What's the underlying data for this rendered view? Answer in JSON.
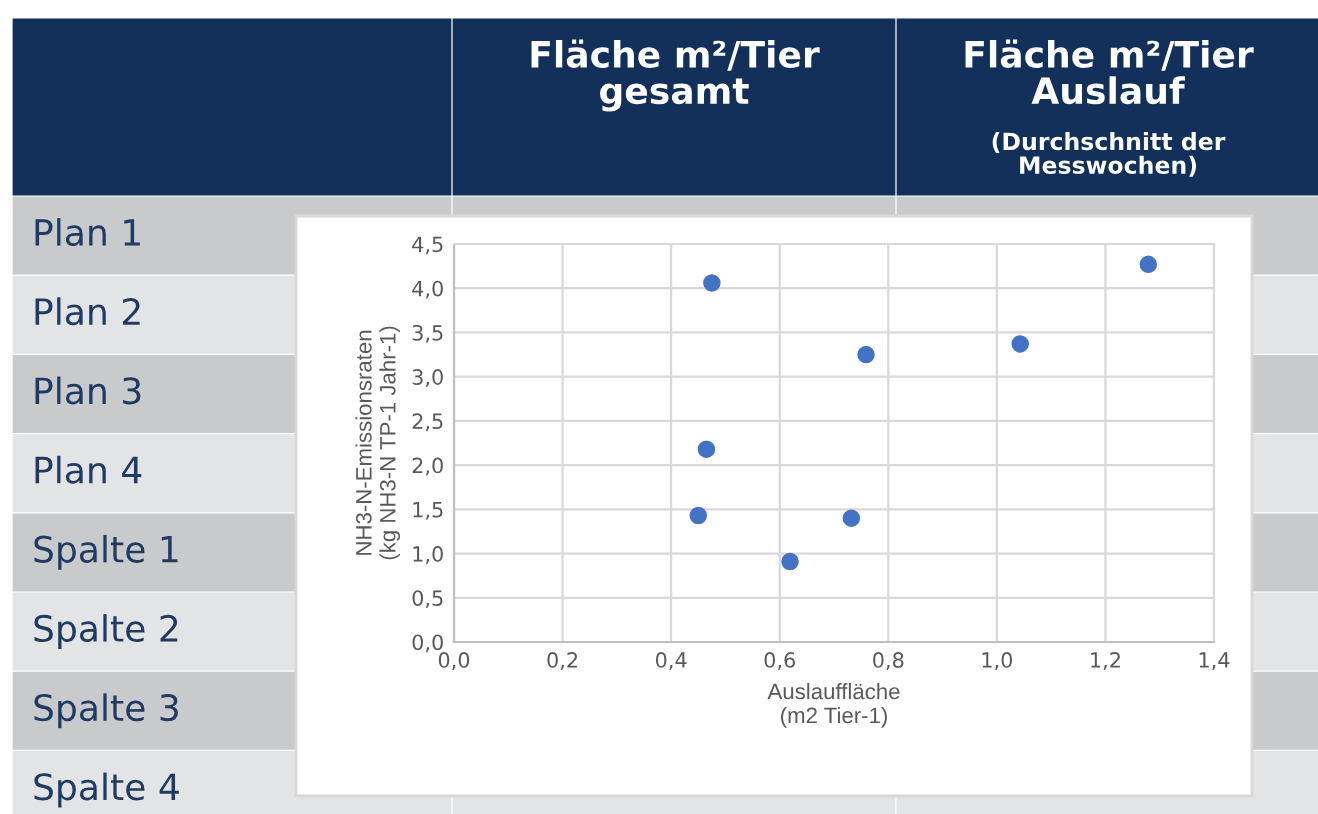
{
  "chart_data": {
    "type": "scatter",
    "xlabel": "Auslauffläche\n(m2 Tier-1)",
    "ylabel": "NH3-N-Emissionsraten\n(kg NH3-N TP-1 Jahr-1)",
    "x": [
      0.475,
      0.759,
      1.279,
      1.043,
      0.465,
      0.45,
      0.732,
      0.619
    ],
    "series": [
      {
        "color": "#4472c4",
        "values": [
          4.06,
          3.25,
          4.27,
          3.37,
          2.18,
          1.43,
          1.4,
          0.91
        ]
      }
    ],
    "marker": "circle",
    "xlim": [
      0,
      1.4
    ],
    "xticks": [
      {
        "value": 0,
        "label": "0,0"
      },
      {
        "value": 0.2,
        "label": "0,2"
      },
      {
        "value": 0.4,
        "label": "0,4"
      },
      {
        "value": 0.6,
        "label": "0,6"
      },
      {
        "value": 0.8,
        "label": "0,8"
      },
      {
        "value": 1.0,
        "label": "1,0"
      },
      {
        "value": 1.2,
        "label": "1,2"
      },
      {
        "value": 1.4,
        "label": "1,4"
      }
    ],
    "ylim": [
      0,
      4.5
    ],
    "yticks": [
      {
        "value": 0,
        "label": "0,0"
      },
      {
        "value": 0.5,
        "label": "0,5"
      },
      {
        "value": 1.0,
        "label": "1,0"
      },
      {
        "value": 1.5,
        "label": "1,5"
      },
      {
        "value": 2.0,
        "label": "2,0"
      },
      {
        "value": 2.5,
        "label": "2,5"
      },
      {
        "value": 3.0,
        "label": "3,0"
      },
      {
        "value": 3.5,
        "label": "3,5"
      },
      {
        "value": 4.0,
        "label": "4,0"
      },
      {
        "value": 4.5,
        "label": "4,5"
      }
    ],
    "grid": true,
    "legend": false,
    "annotations": [
      "Fläche m²/Tier\ngesamt",
      "Fläche m²/Tier\nAuslauf",
      "(Durchschnitt der\nMesswochen)",
      "Plan 1",
      "Plan 2",
      "Plan 3",
      "Plan 4",
      "Spalte 1",
      "Spalte 2",
      "Spalte 3",
      "Spalte 4"
    ]
  }
}
